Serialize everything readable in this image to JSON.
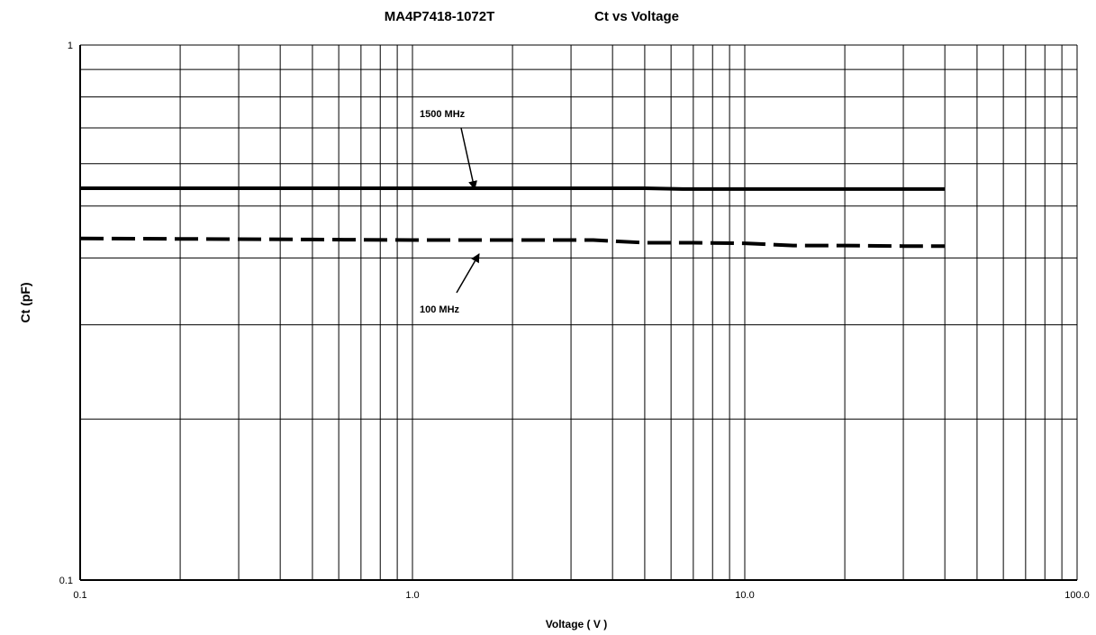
{
  "chart_data": {
    "type": "line",
    "title_part": "MA4P7418-1072T",
    "title": "Ct vs Voltage",
    "xlabel": "Voltage ( V )",
    "ylabel": "Ct (pF)",
    "x_scale": "log",
    "y_scale": "log",
    "xlim": [
      0.1,
      100
    ],
    "ylim": [
      0.1,
      1
    ],
    "x_tick_labels": [
      "0.1",
      "1.0",
      "10.0",
      "100.0"
    ],
    "y_tick_labels": [
      "0.1",
      "1"
    ],
    "grid": true,
    "series": [
      {
        "name": "1500 MHz",
        "style": "solid",
        "x": [
          0.1,
          0.5,
          1.0,
          2.0,
          5.0,
          6.5,
          10.0,
          20.0,
          40.0
        ],
        "y": [
          0.54,
          0.54,
          0.54,
          0.54,
          0.54,
          0.538,
          0.538,
          0.538,
          0.538
        ]
      },
      {
        "name": "100 MHz",
        "style": "dashed",
        "x": [
          0.1,
          0.5,
          1.0,
          2.0,
          3.5,
          5.0,
          7.0,
          10.0,
          14.0,
          20.0,
          30.0,
          40.0
        ],
        "y": [
          0.435,
          0.433,
          0.432,
          0.432,
          0.432,
          0.427,
          0.427,
          0.426,
          0.422,
          0.422,
          0.421,
          0.421
        ]
      }
    ],
    "annotations": [
      {
        "text": "1500 MHz",
        "series": "1500 MHz",
        "x": 1.5,
        "y": 0.54
      },
      {
        "text": "100 MHz",
        "series": "100 MHz",
        "x": 1.5,
        "y": 0.432
      }
    ]
  }
}
